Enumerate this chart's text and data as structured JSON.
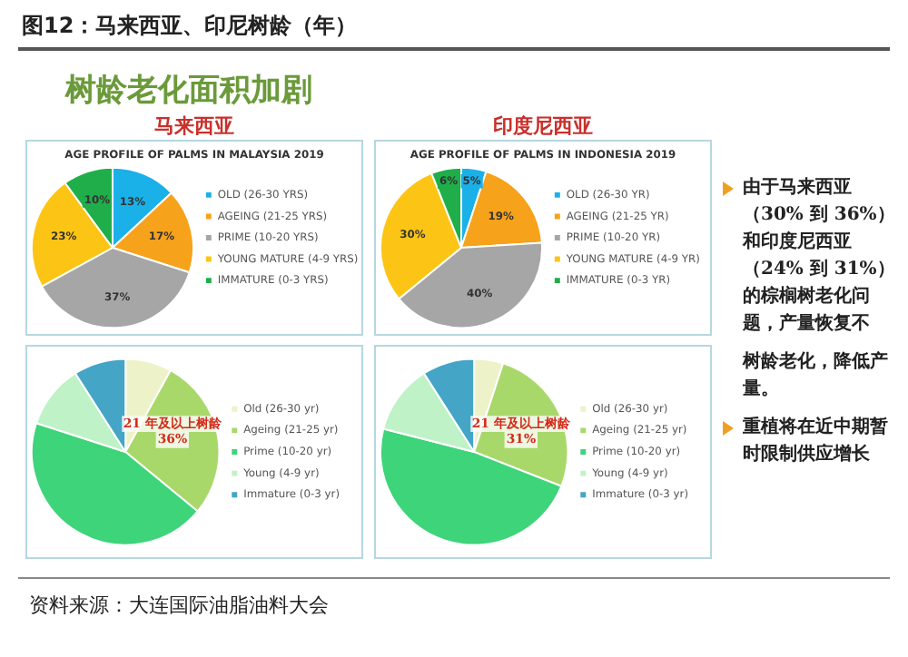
{
  "chart_data": [
    {
      "type": "pie",
      "title": "AGE PROFILE OF PALMS IN MALAYSIA 2019",
      "subtitle": "马来西亚",
      "categories": [
        "OLD (26-30 YRS)",
        "AGEING (21-25 YRS)",
        "PRIME (10-20 YRS)",
        "YOUNG MATURE (4-9 YRS)",
        "IMMATURE (0-3 YRS)"
      ],
      "values": [
        13,
        17,
        37,
        23,
        10
      ],
      "value_labels": [
        "13%",
        "17%",
        "37%",
        "23%",
        "10%"
      ],
      "colors": [
        "#1ab0e8",
        "#f7a21b",
        "#a6a6a6",
        "#fcc515",
        "#1fae4a"
      ],
      "legend": "right"
    },
    {
      "type": "pie",
      "title": "AGE PROFILE OF PALMS IN INDONESIA 2019",
      "subtitle": "印度尼西亚",
      "categories": [
        "OLD (26-30 YR)",
        "AGEING (21-25 YR)",
        "PRIME (10-20 YR)",
        "YOUNG MATURE (4-9 YR)",
        "IMMATURE (0-3 YR)"
      ],
      "values": [
        5,
        19,
        40,
        30,
        6
      ],
      "value_labels": [
        "5%",
        "19%",
        "40%",
        "30%",
        "6%"
      ],
      "colors": [
        "#1ab0e8",
        "#f7a21b",
        "#a6a6a6",
        "#fcc515",
        "#1fae4a"
      ],
      "legend": "right"
    },
    {
      "type": "pie",
      "categories": [
        "Old (26-30 yr)",
        "Ageing (21-25 yr)",
        "Prime (10-20 yr)",
        "Young (4-9 yr)",
        "Immature (0-3 yr)"
      ],
      "values": [
        8,
        28,
        44,
        11,
        9
      ],
      "colors": [
        "#eef2c8",
        "#a8d86a",
        "#3dd47a",
        "#bff2c6",
        "#45a5c6"
      ],
      "legend": "right",
      "annotations": [
        "21 年及以上树龄 36%"
      ]
    },
    {
      "type": "pie",
      "categories": [
        "Old (26-30 yr)",
        "Ageing (21-25 yr)",
        "Prime (10-20 yr)",
        "Young (4-9 yr)",
        "Immature (0-3 yr)"
      ],
      "values": [
        5,
        26,
        48,
        12,
        9
      ],
      "colors": [
        "#eef2c8",
        "#a8d86a",
        "#3dd47a",
        "#bff2c6",
        "#45a5c6"
      ],
      "legend": "right",
      "annotations": [
        "21 年及以上树龄 31%"
      ]
    },
    {
      "type": "other",
      "title": "图12：马来西亚、印尼树龄（年）",
      "subtitle": "树龄老化面积加剧",
      "annotations": [
        "由于马来西亚（30% 到 36%）和印度尼西亚（24% 到 31%）的棕榈树老化问题，产量恢复不",
        "树龄老化，降低产量。",
        "重植将在近中期暂时限制供应增长",
        "资料来源：大连国际油脂油料大会"
      ]
    }
  ]
}
